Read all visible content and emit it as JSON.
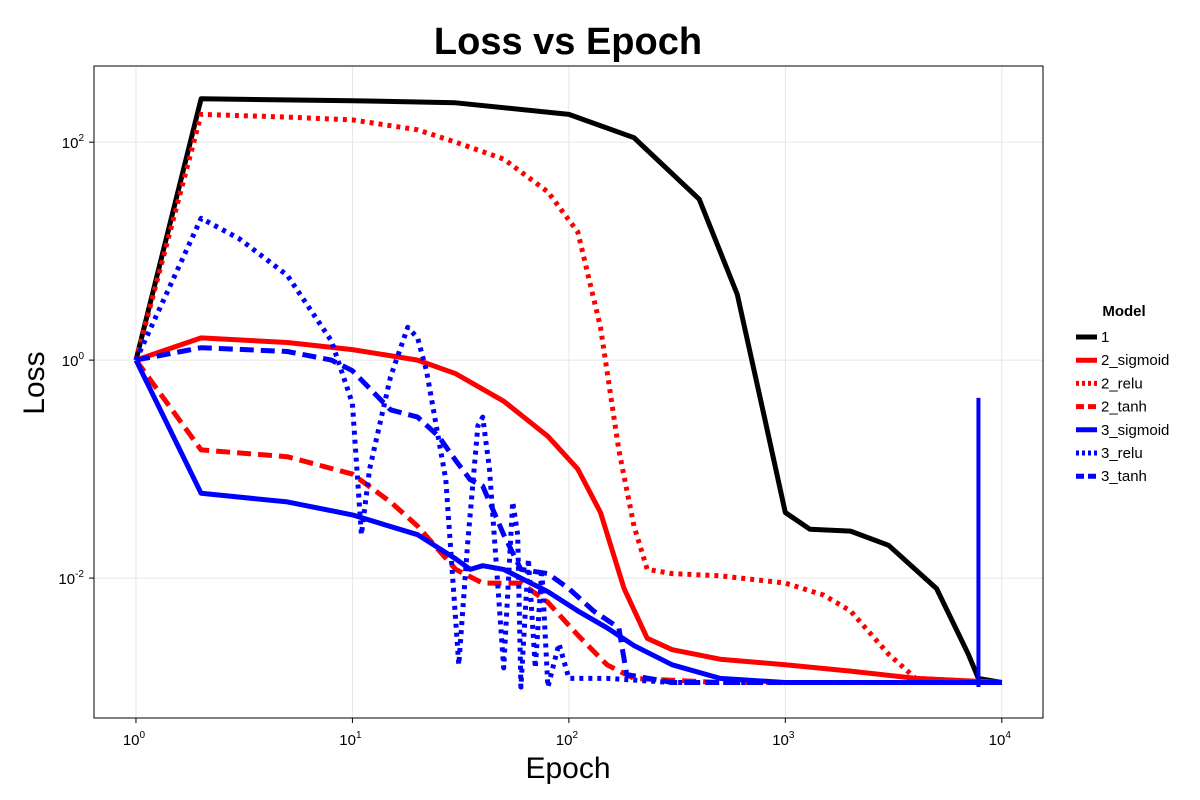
{
  "chart_data": {
    "type": "line",
    "title": "Loss vs Epoch",
    "xlabel": "Epoch",
    "ylabel": "Loss",
    "xscale": "log10",
    "yscale": "log10",
    "xlim": [
      0.64,
      15500
    ],
    "ylim": [
      0.00052,
      500
    ],
    "grid": true,
    "legend_placement": "right",
    "legend_title": "Model",
    "x_ticks": [
      {
        "base": "10",
        "exp": "0",
        "value": 1
      },
      {
        "base": "10",
        "exp": "1",
        "value": 10
      },
      {
        "base": "10",
        "exp": "2",
        "value": 100
      },
      {
        "base": "10",
        "exp": "3",
        "value": 1000
      },
      {
        "base": "10",
        "exp": "4",
        "value": 10000
      }
    ],
    "y_ticks": [
      {
        "base": "10",
        "exp": "-2",
        "value": 0.01
      },
      {
        "base": "10",
        "exp": "0",
        "value": 1
      },
      {
        "base": "10",
        "exp": "2",
        "value": 100
      }
    ],
    "series": [
      {
        "name": "1",
        "color": "#000000",
        "dash": "solid",
        "points": [
          [
            1,
            1
          ],
          [
            2,
            250
          ],
          [
            10,
            240
          ],
          [
            30,
            230
          ],
          [
            100,
            180
          ],
          [
            200,
            110
          ],
          [
            400,
            30
          ],
          [
            600,
            4
          ],
          [
            800,
            0.3
          ],
          [
            1000,
            0.04
          ],
          [
            1300,
            0.028
          ],
          [
            2000,
            0.027
          ],
          [
            3000,
            0.02
          ],
          [
            5000,
            0.008
          ],
          [
            7000,
            0.002
          ],
          [
            7800,
            0.0012
          ],
          [
            10000,
            0.0011
          ]
        ]
      },
      {
        "name": "2_sigmoid",
        "color": "#ff0000",
        "dash": "solid",
        "points": [
          [
            1,
            1
          ],
          [
            2,
            1.6
          ],
          [
            5,
            1.45
          ],
          [
            10,
            1.25
          ],
          [
            20,
            1.0
          ],
          [
            30,
            0.75
          ],
          [
            50,
            0.42
          ],
          [
            80,
            0.2
          ],
          [
            110,
            0.1
          ],
          [
            140,
            0.04
          ],
          [
            180,
            0.008
          ],
          [
            230,
            0.0028
          ],
          [
            300,
            0.0022
          ],
          [
            500,
            0.0018
          ],
          [
            1000,
            0.0016
          ],
          [
            2000,
            0.0014
          ],
          [
            4000,
            0.0012
          ],
          [
            10000,
            0.0011
          ]
        ]
      },
      {
        "name": "2_relu",
        "color": "#ff0000",
        "dash": "dotted",
        "points": [
          [
            1,
            1
          ],
          [
            2,
            180
          ],
          [
            5,
            170
          ],
          [
            10,
            160
          ],
          [
            20,
            130
          ],
          [
            30,
            100
          ],
          [
            50,
            70
          ],
          [
            80,
            35
          ],
          [
            110,
            15
          ],
          [
            140,
            2
          ],
          [
            170,
            0.15
          ],
          [
            200,
            0.03
          ],
          [
            230,
            0.012
          ],
          [
            300,
            0.011
          ],
          [
            500,
            0.0105
          ],
          [
            1000,
            0.009
          ],
          [
            1500,
            0.007
          ],
          [
            2000,
            0.005
          ],
          [
            3000,
            0.002
          ],
          [
            4000,
            0.0012
          ],
          [
            10000,
            0.0011
          ]
        ]
      },
      {
        "name": "2_tanh",
        "color": "#ff0000",
        "dash": "dashed",
        "points": [
          [
            1,
            1
          ],
          [
            2,
            0.15
          ],
          [
            5,
            0.13
          ],
          [
            10,
            0.09
          ],
          [
            15,
            0.05
          ],
          [
            20,
            0.03
          ],
          [
            30,
            0.012
          ],
          [
            40,
            0.009
          ],
          [
            60,
            0.009
          ],
          [
            80,
            0.006
          ],
          [
            110,
            0.003
          ],
          [
            150,
            0.0016
          ],
          [
            200,
            0.0012
          ],
          [
            500,
            0.0011
          ],
          [
            10000,
            0.0011
          ]
        ]
      },
      {
        "name": "3_sigmoid",
        "color": "#0000ff",
        "dash": "solid",
        "points": [
          [
            1,
            1
          ],
          [
            2,
            0.06
          ],
          [
            5,
            0.05
          ],
          [
            10,
            0.038
          ],
          [
            20,
            0.025
          ],
          [
            30,
            0.015
          ],
          [
            35,
            0.012
          ],
          [
            40,
            0.013
          ],
          [
            50,
            0.012
          ],
          [
            60,
            0.01
          ],
          [
            80,
            0.0075
          ],
          [
            110,
            0.005
          ],
          [
            150,
            0.0035
          ],
          [
            200,
            0.0024
          ],
          [
            300,
            0.0016
          ],
          [
            500,
            0.0012
          ],
          [
            1000,
            0.0011
          ],
          [
            10000,
            0.0011
          ]
        ]
      },
      {
        "name": "3_relu",
        "color": "#0000ff",
        "dash": "dotted",
        "points": [
          [
            1,
            1
          ],
          [
            2,
            20
          ],
          [
            3,
            13
          ],
          [
            5,
            6
          ],
          [
            8,
            1.5
          ],
          [
            10,
            0.4
          ],
          [
            11,
            0.025
          ],
          [
            12,
            0.1
          ],
          [
            15,
            0.7
          ],
          [
            18,
            2
          ],
          [
            20,
            1.6
          ],
          [
            22,
            0.8
          ],
          [
            27,
            0.08
          ],
          [
            31,
            0.0016
          ],
          [
            34,
            0.02
          ],
          [
            38,
            0.25
          ],
          [
            40,
            0.3
          ],
          [
            43,
            0.1
          ],
          [
            50,
            0.0015
          ],
          [
            55,
            0.05
          ],
          [
            58,
            0.025
          ],
          [
            60,
            0.001
          ],
          [
            65,
            0.015
          ],
          [
            70,
            0.0015
          ],
          [
            75,
            0.012
          ],
          [
            80,
            0.001
          ],
          [
            90,
            0.0025
          ],
          [
            100,
            0.0012
          ],
          [
            150,
            0.0012
          ],
          [
            300,
            0.0011
          ],
          [
            10000,
            0.0011
          ]
        ]
      },
      {
        "name": "3_tanh",
        "color": "#0000ff",
        "dash": "dashed",
        "points": [
          [
            1,
            1
          ],
          [
            2,
            1.3
          ],
          [
            5,
            1.2
          ],
          [
            8,
            1.0
          ],
          [
            10,
            0.8
          ],
          [
            15,
            0.35
          ],
          [
            20,
            0.3
          ],
          [
            25,
            0.2
          ],
          [
            30,
            0.12
          ],
          [
            35,
            0.08
          ],
          [
            40,
            0.07
          ],
          [
            50,
            0.025
          ],
          [
            60,
            0.012
          ],
          [
            80,
            0.011
          ],
          [
            100,
            0.008
          ],
          [
            130,
            0.005
          ],
          [
            170,
            0.0035
          ],
          [
            185,
            0.0013
          ],
          [
            300,
            0.0011
          ],
          [
            10000,
            0.0011
          ]
        ]
      }
    ],
    "spike": {
      "series": "3_relu",
      "x": 7800,
      "low": 0.001,
      "high": 0.45
    }
  }
}
